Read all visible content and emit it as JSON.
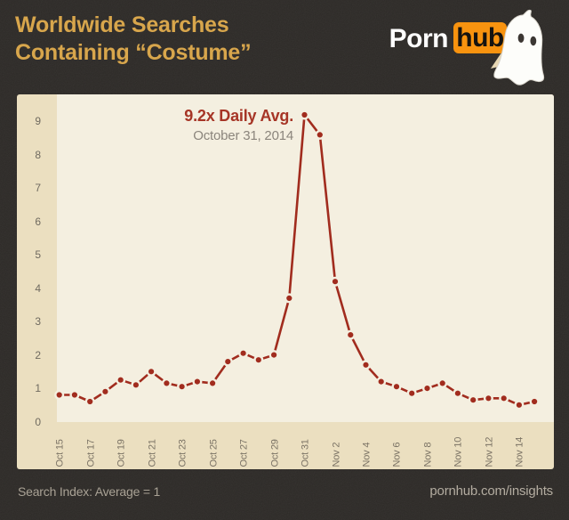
{
  "header": {
    "title_line1": "Worldwide Searches",
    "title_line2": "Containing “Costume”",
    "logo": {
      "part1": "Porn",
      "part2": "hub",
      "ghost_icon": "ghost-icon"
    }
  },
  "annotation": {
    "headline": "9.2x Daily Avg.",
    "subline": "October 31, 2014"
  },
  "footer": {
    "left": "Search Index: Average = 1",
    "right": "pornhub.com/insights"
  },
  "colors": {
    "background": "#2d2a27",
    "title_gold": "#d8a64c",
    "panel_band": "#ebdfc0",
    "plot_bg": "#f4efe0",
    "line_red": "#a12c1e",
    "dot_stroke": "#f4efe0",
    "annotation_red": "#a63526",
    "annotation_gray": "#8b857c",
    "logo_orange": "#f8930f"
  },
  "chart_data": {
    "type": "line",
    "title": "Worldwide Searches Containing “Costume”",
    "xlabel": "",
    "ylabel": "Search Index (Average = 1)",
    "x": [
      "Oct 15",
      "Oct 16",
      "Oct 17",
      "Oct 18",
      "Oct 19",
      "Oct 20",
      "Oct 21",
      "Oct 22",
      "Oct 23",
      "Oct 24",
      "Oct 25",
      "Oct 26",
      "Oct 27",
      "Oct 28",
      "Oct 29",
      "Oct 30",
      "Oct 31",
      "Nov 1",
      "Nov 2",
      "Nov 3",
      "Nov 4",
      "Nov 5",
      "Nov 6",
      "Nov 7",
      "Nov 8",
      "Nov 9",
      "Nov 10",
      "Nov 11",
      "Nov 12",
      "Nov 13",
      "Nov 14",
      "Nov 15"
    ],
    "values": [
      0.8,
      0.8,
      0.6,
      0.9,
      1.25,
      1.1,
      1.5,
      1.15,
      1.05,
      1.2,
      1.15,
      1.8,
      2.05,
      1.85,
      2.0,
      3.7,
      9.2,
      8.6,
      4.2,
      2.6,
      1.7,
      1.2,
      1.05,
      0.85,
      1.0,
      1.15,
      0.85,
      0.65,
      0.7,
      0.7,
      0.5,
      0.6
    ],
    "peak": {
      "x": "Oct 31",
      "value": 9.2,
      "label": "9.2x Daily Avg.",
      "date_label": "October 31, 2014"
    },
    "y_ticks": [
      0,
      1,
      2,
      3,
      4,
      5,
      6,
      7,
      8,
      9
    ],
    "x_tick_labels": [
      "Oct 15",
      "Oct 17",
      "Oct 19",
      "Oct 21",
      "Oct 23",
      "Oct 25",
      "Oct 27",
      "Oct 29",
      "Oct 31",
      "Nov 2",
      "Nov 4",
      "Nov 6",
      "Nov 8",
      "Nov 10",
      "Nov 12",
      "Nov 14"
    ],
    "x_tick_every": 2,
    "ylim": [
      0,
      9.8
    ],
    "grid": false,
    "legend": "none"
  }
}
